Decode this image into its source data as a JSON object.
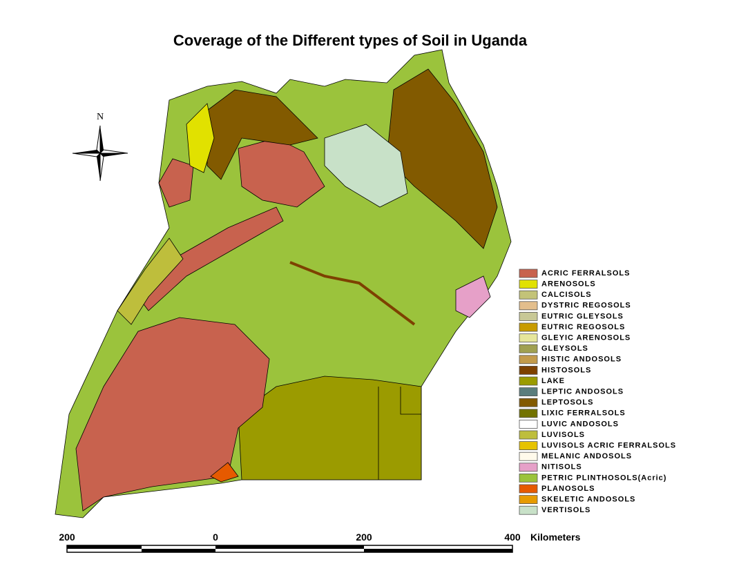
{
  "header": {
    "title": "Coverage of the Different types of Soil in Uganda"
  },
  "north_arrow": {
    "label": "N"
  },
  "legend": {
    "items": [
      {
        "label": "ACRIC FERRALSOLS",
        "color": "#c8624e"
      },
      {
        "label": "ARENOSOLS",
        "color": "#e1e100"
      },
      {
        "label": "CALCISOLS",
        "color": "#c3c378"
      },
      {
        "label": "DYSTRIC REGOSOLS",
        "color": "#e3be8c"
      },
      {
        "label": "EUTRIC GLEYSOLS",
        "color": "#c8c896"
      },
      {
        "label": "EUTRIC REGOSOLS",
        "color": "#c89b00"
      },
      {
        "label": "GLEYIC ARENOSOLS",
        "color": "#e6e69b"
      },
      {
        "label": "GLEYSOLS",
        "color": "#a0a050"
      },
      {
        "label": "HISTIC ANDOSOLS",
        "color": "#c39b4b"
      },
      {
        "label": "HISTOSOLS",
        "color": "#7d4100"
      },
      {
        "label": "LAKE",
        "color": "#9b9b00"
      },
      {
        "label": "LEPTIC ANDOSOLS",
        "color": "#5a7d7d"
      },
      {
        "label": "LEPTOSOLS",
        "color": "#825a00"
      },
      {
        "label": "LIXIC FERRALSOLS",
        "color": "#737300"
      },
      {
        "label": "LUVIC ANDOSOLS",
        "color": "#ffffff"
      },
      {
        "label": "LUVISOLS",
        "color": "#bebe3c"
      },
      {
        "label": "LUVISOLS ACRIC FERRALSOLS",
        "color": "#e6c300"
      },
      {
        "label": "MELANIC ANDOSOLS",
        "color": "#fffaeb"
      },
      {
        "label": "NITISOLS",
        "color": "#e6a0c8"
      },
      {
        "label": "PETRIC PLINTHOSOLS(Acric)",
        "color": "#9bc33c"
      },
      {
        "label": "PLANOSOLS",
        "color": "#e65a00"
      },
      {
        "label": "SKELETIC ANDOSOLS",
        "color": "#e69b00"
      },
      {
        "label": "VERTISOLS",
        "color": "#c8e1c8"
      }
    ]
  },
  "scale_bar": {
    "labels": [
      "200",
      "0",
      "200",
      "400"
    ],
    "unit": "Kilometers"
  }
}
